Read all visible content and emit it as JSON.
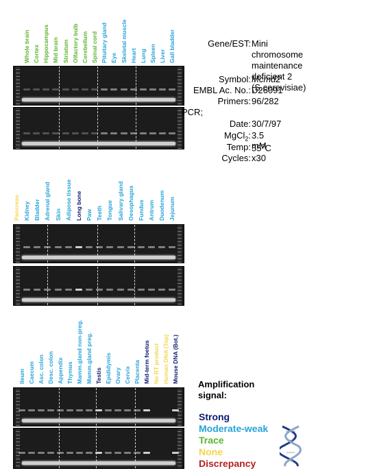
{
  "colors": {
    "strong": "#0b1a6e",
    "moderate_weak": "#26a3d9",
    "trace": "#5cb52e",
    "none": "#f2d64a",
    "discrepancy": "#b51f1f"
  },
  "panels": [
    {
      "lanes": [
        {
          "label": "Whole brain",
          "signal": "trace"
        },
        {
          "label": "Cortex",
          "signal": "trace"
        },
        {
          "label": "Hippocampus",
          "signal": "trace"
        },
        {
          "label": "Mid brain",
          "signal": "trace"
        },
        {
          "label": "Striatum",
          "signal": "trace"
        },
        {
          "label": "Olfactory bulb",
          "signal": "trace"
        },
        {
          "label": "Cerebellum",
          "signal": "trace"
        },
        {
          "label": "Spinal cord",
          "signal": "trace"
        },
        {
          "label": "Pituitary gland",
          "signal": "moderate_weak"
        },
        {
          "label": "Eye",
          "signal": "moderate_weak"
        },
        {
          "label": "Skeletal muscle",
          "signal": "moderate_weak"
        },
        {
          "label": "Heart",
          "signal": "moderate_weak"
        },
        {
          "label": "Lung",
          "signal": "moderate_weak"
        },
        {
          "label": "Spleen",
          "signal": "moderate_weak"
        },
        {
          "label": "Liver",
          "signal": "moderate_weak"
        },
        {
          "label": "Gall bladder",
          "signal": "moderate_weak"
        }
      ]
    },
    {
      "lanes": [
        {
          "label": "Pancreas",
          "signal": "none"
        },
        {
          "label": "Kidney",
          "signal": "moderate_weak"
        },
        {
          "label": "Bladder",
          "signal": "moderate_weak"
        },
        {
          "label": "Adrenal gland",
          "signal": "moderate_weak"
        },
        {
          "label": "Skin",
          "signal": "moderate_weak"
        },
        {
          "label": "Adipose tissue",
          "signal": "moderate_weak"
        },
        {
          "label": "Long bone",
          "signal": "strong"
        },
        {
          "label": "Paw",
          "signal": "moderate_weak"
        },
        {
          "label": "Teeth",
          "signal": "moderate_weak"
        },
        {
          "label": "Tongue",
          "signal": "moderate_weak"
        },
        {
          "label": "Salivary gland",
          "signal": "moderate_weak"
        },
        {
          "label": "Oesophagus",
          "signal": "moderate_weak"
        },
        {
          "label": "Fundus",
          "signal": "moderate_weak"
        },
        {
          "label": "Antrum",
          "signal": "moderate_weak"
        },
        {
          "label": "Duodenum",
          "signal": "moderate_weak"
        },
        {
          "label": "Jejunum",
          "signal": "moderate_weak"
        }
      ]
    },
    {
      "lanes": [
        {
          "label": "Ileum",
          "signal": "moderate_weak"
        },
        {
          "label": "Caecum",
          "signal": "moderate_weak"
        },
        {
          "label": "Asc. colon",
          "signal": "moderate_weak"
        },
        {
          "label": "Desc. colon",
          "signal": "moderate_weak"
        },
        {
          "label": "Appendix",
          "signal": "moderate_weak"
        },
        {
          "label": "Thymus",
          "signal": "moderate_weak"
        },
        {
          "label": "Mamm.gland non-preg.",
          "signal": "moderate_weak"
        },
        {
          "label": "Mamm.gland preg.",
          "signal": "moderate_weak"
        },
        {
          "label": "Testis",
          "signal": "strong"
        },
        {
          "label": "Epididymis",
          "signal": "moderate_weak"
        },
        {
          "label": "Ovary",
          "signal": "moderate_weak"
        },
        {
          "label": "Cervix",
          "signal": "moderate_weak"
        },
        {
          "label": "Placenta",
          "signal": "moderate_weak"
        },
        {
          "label": "Mid-term foetus",
          "signal": "strong"
        },
        {
          "label": "No RT product",
          "signal": "none"
        },
        {
          "label": "Human DNA (Top)",
          "signal": "none"
        },
        {
          "label": "Mouse DNA (Bot.)",
          "signal": "strong"
        }
      ]
    }
  ],
  "info": {
    "gene_key": "Gene/EST:",
    "gene_lines": [
      "Mini chromosome",
      "maintenance deficient 2",
      "(S.cerevisiae)"
    ],
    "symbol_key": "Symbol:",
    "symbol_val": "Mcmd2",
    "embl_key": "EMBL Ac. No.:",
    "embl_val": "D26091",
    "primers_key": "Primers:",
    "primers_val": "96/282",
    "pcr_key": "PCR;",
    "date_key": "Date:",
    "date_val": "30/7/97",
    "mgcl_key_pre": "MgCl",
    "mgcl_key_sub": "2",
    "mgcl_key_post": ":",
    "mgcl_val": "3.5 mM",
    "temp_key": "Temp:",
    "temp_val_pre": "55",
    "temp_val_sup": "o",
    "temp_val_post": "C",
    "cycles_key": "Cycles:",
    "cycles_val": "x30"
  },
  "legend": {
    "title": "Amplification signal:",
    "items": [
      {
        "label": "Strong",
        "signal": "strong"
      },
      {
        "label": "Moderate-weak",
        "signal": "moderate_weak"
      },
      {
        "label": "Trace",
        "signal": "trace"
      },
      {
        "label": "None",
        "signal": "none"
      },
      {
        "label": "Discrepancy",
        "signal": "discrepancy"
      }
    ]
  },
  "helix_icon": "dna-double-helix-icon"
}
